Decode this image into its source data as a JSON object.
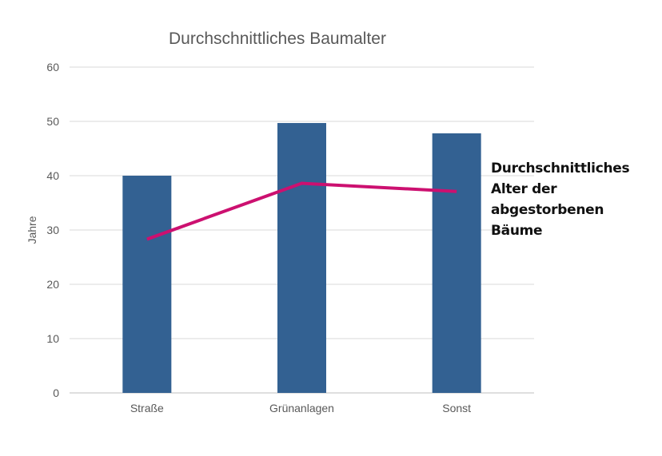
{
  "chart_data": {
    "type": "bar",
    "title": "Durchschnittliches Baumalter",
    "xlabel": "",
    "ylabel": "Jahre",
    "ylim": [
      0,
      60
    ],
    "yticks": [
      0,
      10,
      20,
      30,
      40,
      50,
      60
    ],
    "grid": true,
    "categories": [
      "Straße",
      "Grünanlagen",
      "Sonst"
    ],
    "series": [
      {
        "name": "Durchschnittliches Baumalter",
        "kind": "bar",
        "color": "#336192",
        "values": [
          40,
          49.7,
          47.8
        ]
      },
      {
        "name": "Durchschnittliches Alter der abgestorbenen Bäume",
        "kind": "line",
        "color": "#CC1070",
        "values": [
          28.3,
          38.6,
          37.1
        ]
      }
    ],
    "legend": {
      "placement": "right",
      "label": "Durchschnittliches Alter der abgestorbenen Bäume"
    }
  }
}
